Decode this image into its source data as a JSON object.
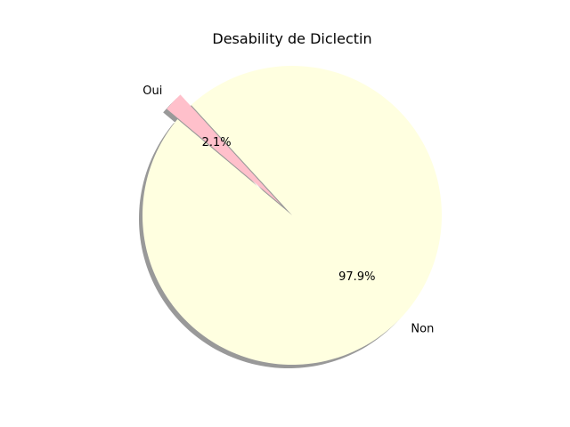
{
  "chart_data": {
    "type": "pie",
    "title": "Desability de Diclectin",
    "labels": [
      "Non",
      "Oui"
    ],
    "values": [
      97.9,
      2.1
    ],
    "percent_labels": [
      "97.9%",
      "2.1%"
    ],
    "colors": [
      "#ffffe0",
      "#ffc0cb"
    ],
    "explode": [
      0,
      0.1
    ],
    "shadow": true,
    "start_angle_deg": 140
  }
}
